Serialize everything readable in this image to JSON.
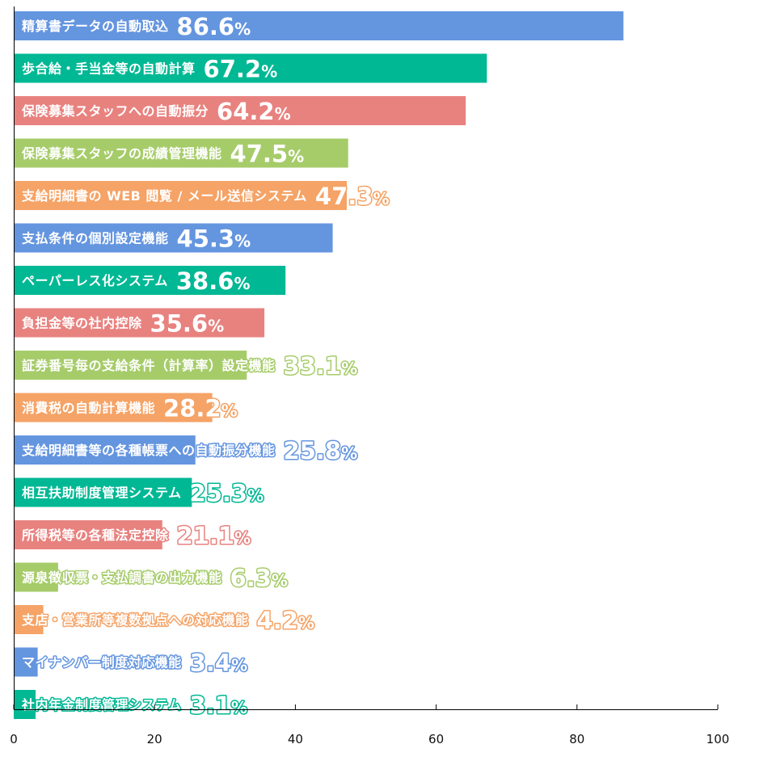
{
  "chart_data": {
    "type": "bar",
    "orientation": "horizontal",
    "categories": [
      "精算書データの自動取込",
      "歩合給・手当金等の自動計算",
      "保険募集スタッフへの自動振分",
      "保険募集スタッフの成績管理機能",
      "支給明細書の WEB 閲覧 / メール送信システム",
      "支払条件の個別設定機能",
      "ペーパーレス化システム",
      "負担金等の社内控除",
      "証券番号毎の支給条件（計算率）設定機能",
      "消費税の自動計算機能",
      "支給明細書等の各種帳票への自動振分機能",
      "相互扶助制度管理システム",
      "所得税等の各種法定控除",
      "源泉徴収票・支払調書の出力機能",
      "支店・営業所等複数拠点への対応機能",
      "マイナンバー制度対応機能",
      "社内年金制度管理システム"
    ],
    "values": [
      86.6,
      67.2,
      64.2,
      47.5,
      47.3,
      45.3,
      38.6,
      35.6,
      33.1,
      28.2,
      25.8,
      25.3,
      21.1,
      6.3,
      4.2,
      3.4,
      3.1
    ],
    "value_labels": [
      "86.6",
      "67.2",
      "64.2",
      "47.5",
      "47.3",
      "45.3",
      "38.6",
      "35.6",
      "33.1",
      "28.2",
      "25.8",
      "25.3",
      "21.1",
      "6.3",
      "4.2",
      "3.4",
      "3.1"
    ],
    "value_suffix": "%",
    "bar_colors": [
      "#6495df",
      "#00b894",
      "#e8827f",
      "#a6cc6a",
      "#f5a366",
      "#6495df",
      "#00b894",
      "#e8827f",
      "#a6cc6a",
      "#f5a366",
      "#6495df",
      "#00b894",
      "#e8827f",
      "#a6cc6a",
      "#f5a366",
      "#6495df",
      "#00b894"
    ],
    "xlim": [
      0,
      100
    ],
    "xticks": [
      0,
      20,
      40,
      60,
      80,
      100
    ],
    "title": "",
    "xlabel": "",
    "ylabel": "",
    "grid": false,
    "legend": "none"
  }
}
